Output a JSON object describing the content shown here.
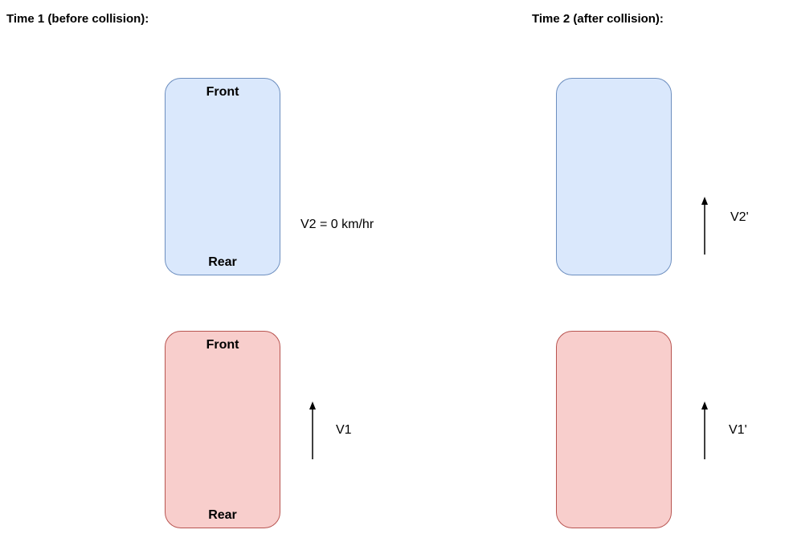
{
  "time1": {
    "title": "Time 1 (before collision):",
    "car_front": {
      "front": "",
      "rear": ""
    },
    "car_rear": {
      "front": "",
      "rear": ""
    },
    "v2_text": "V2 = 0 km/hr",
    "v1_text": "V1"
  },
  "time2": {
    "title": "Time 2 (after collision):",
    "v2_text": "V2'",
    "v1_text": "V1'"
  },
  "labels": {
    "front": "Front",
    "rear": "Rear"
  },
  "colors": {
    "blue_fill": "#dae8fc",
    "blue_stroke": "#6c8ebf",
    "red_fill": "#f8cecc",
    "red_stroke": "#b85450"
  },
  "icons": {
    "velocity_arrow": "arrow-up-icon"
  }
}
